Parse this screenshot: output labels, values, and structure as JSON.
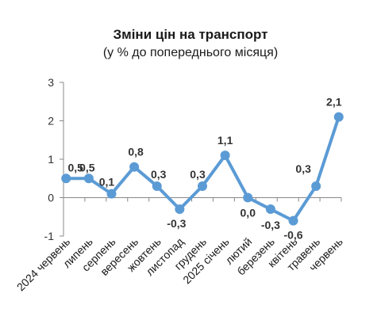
{
  "chart_data": {
    "type": "line",
    "title": "Зміни цін на транспорт",
    "subtitle": "(у % до попереднього місяця)",
    "xlabel": "",
    "ylabel": "",
    "ylim": [
      -1,
      3
    ],
    "yticks": [
      "3",
      "2",
      "1",
      "0",
      "-1"
    ],
    "grid": false,
    "categories": [
      "2024 червень",
      "липень",
      "серпень",
      "вересень",
      "жовтень",
      "листопад",
      "грудень",
      "2025 січень",
      "лютий",
      "березень",
      "квітень",
      "травень",
      "червень"
    ],
    "values": [
      0.5,
      0.5,
      0.1,
      0.8,
      0.3,
      -0.3,
      0.3,
      1.1,
      0.0,
      -0.3,
      -0.6,
      0.3,
      2.1
    ],
    "data_labels": [
      "0,5",
      "0,5",
      "0,1",
      "0,8",
      "0,3",
      "-0,3",
      "0,3",
      "1,1",
      "0,0",
      "-0,3",
      "-0,6",
      "0,3",
      "2,1"
    ],
    "color": "#5b9bd5"
  }
}
